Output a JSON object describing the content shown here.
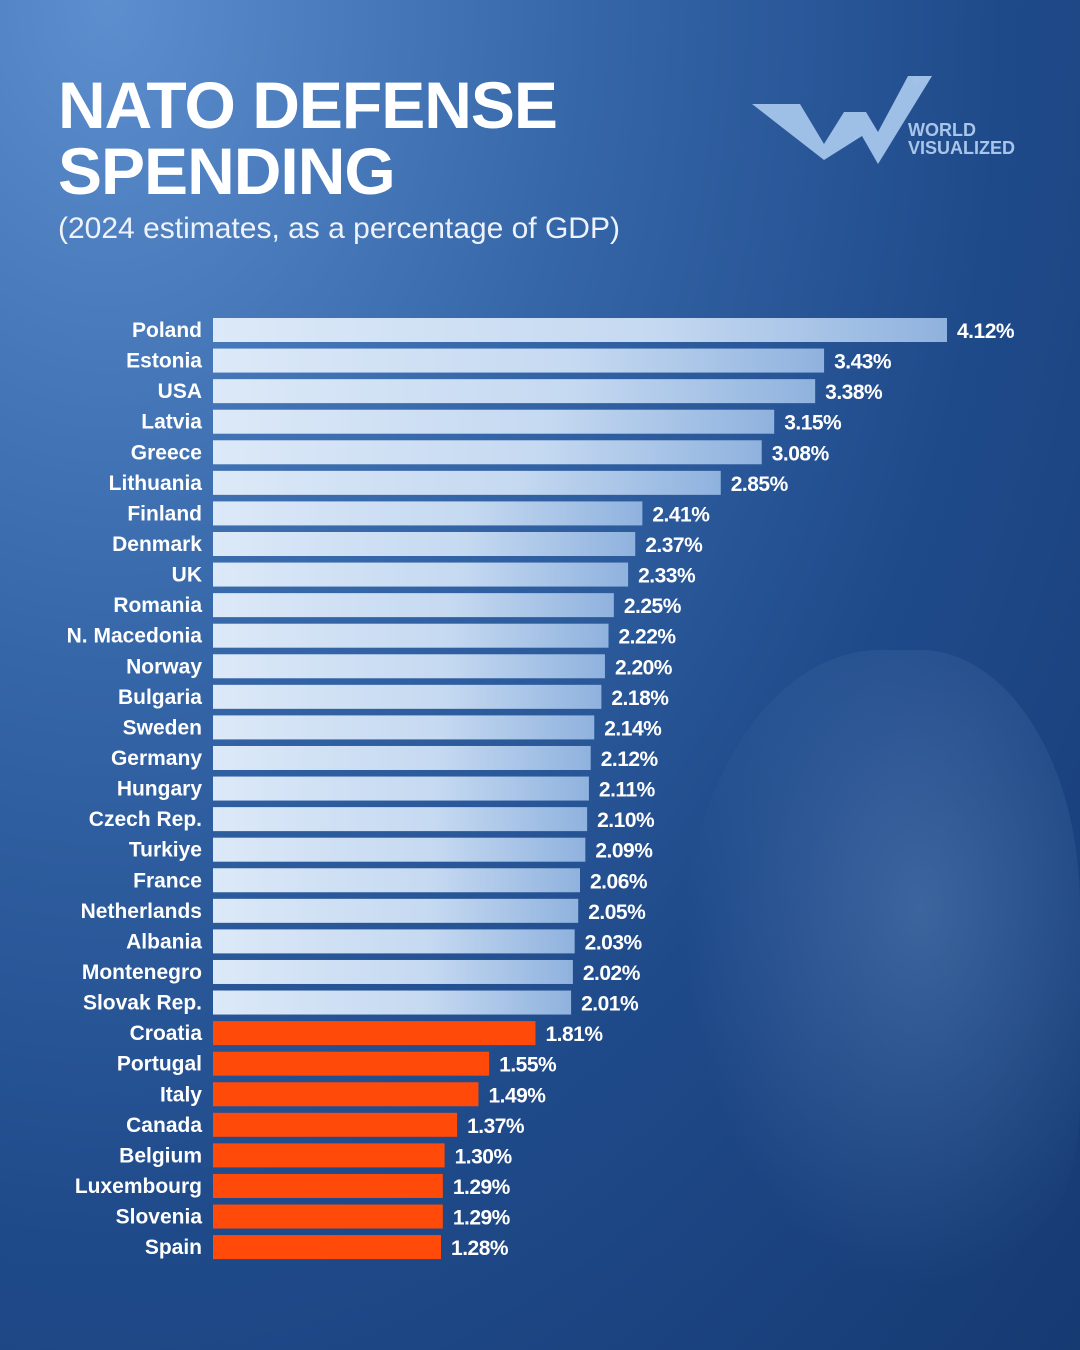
{
  "header": {
    "title_line1": "NATO DEFENSE",
    "title_line2": "SPENDING",
    "subtitle": "(2024 estimates, as a percentage of GDP)"
  },
  "logo": {
    "line1": "WORLD",
    "line2": "VISUALIZED",
    "mark": "®"
  },
  "chart_data": {
    "type": "bar",
    "orientation": "horizontal",
    "title": "NATO DEFENSE SPENDING",
    "subtitle": "(2024 estimates, as a percentage of GDP)",
    "categories": [
      "Poland",
      "Estonia",
      "USA",
      "Latvia",
      "Greece",
      "Lithuania",
      "Finland",
      "Denmark",
      "UK",
      "Romania",
      "N. Macedonia",
      "Norway",
      "Bulgaria",
      "Sweden",
      "Germany",
      "Hungary",
      "Czech Rep.",
      "Turkiye",
      "France",
      "Netherlands",
      "Albania",
      "Montenegro",
      "Slovak Rep.",
      "Croatia",
      "Portugal",
      "Italy",
      "Canada",
      "Belgium",
      "Luxembourg",
      "Slovenia",
      "Spain"
    ],
    "values": [
      4.12,
      3.43,
      3.38,
      3.15,
      3.08,
      2.85,
      2.41,
      2.37,
      2.33,
      2.25,
      2.22,
      2.2,
      2.18,
      2.14,
      2.12,
      2.11,
      2.1,
      2.09,
      2.06,
      2.05,
      2.03,
      2.02,
      2.01,
      1.81,
      1.55,
      1.49,
      1.37,
      1.3,
      1.29,
      1.29,
      1.28
    ],
    "value_labels": [
      "4.12%",
      "3.43%",
      "3.38%",
      "3.15%",
      "3.08%",
      "2.85%",
      "2.41%",
      "2.37%",
      "2.33%",
      "2.25%",
      "2.22%",
      "2.20%",
      "2.18%",
      "2.14%",
      "2.12%",
      "2.11%",
      "2.10%",
      "2.09%",
      "2.06%",
      "2.05%",
      "2.03%",
      "2.02%",
      "2.01%",
      "1.81%",
      "1.55%",
      "1.49%",
      "1.37%",
      "1.30%",
      "1.29%",
      "1.29%",
      "1.28%"
    ],
    "xlim": [
      0,
      4.12
    ],
    "grid": false,
    "colors": {
      "at_or_above_2": "#b9d0ee",
      "below_2": "#ff4a0a"
    },
    "threshold": 2.0
  }
}
